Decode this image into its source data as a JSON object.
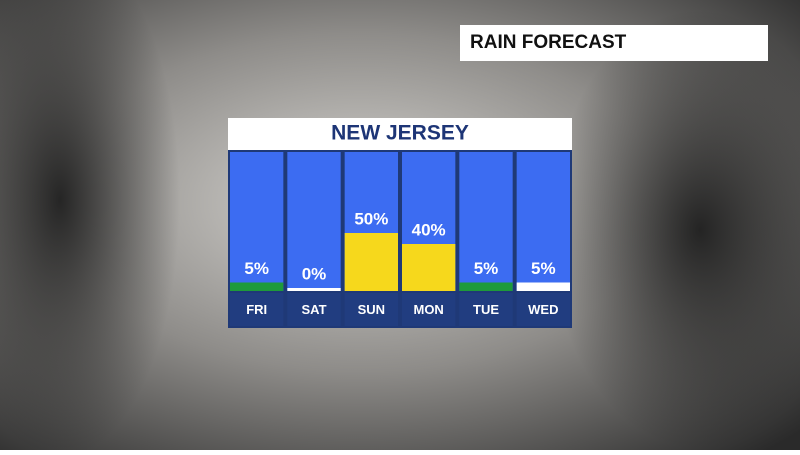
{
  "header": {
    "title": "RAIN FORECAST"
  },
  "chart_data": {
    "type": "bar",
    "title": "NEW JERSEY",
    "categories": [
      "FRI",
      "SAT",
      "SUN",
      "MON",
      "TUE",
      "WED"
    ],
    "values": [
      5,
      0,
      50,
      40,
      5,
      5
    ],
    "value_labels": [
      "5%",
      "0%",
      "50%",
      "40%",
      "5%",
      "5%"
    ],
    "colors": [
      "#1e9a3a",
      "#ffffff",
      "#f6d81c",
      "#f6d81c",
      "#1e9a3a",
      "#ffffff"
    ],
    "ylim": [
      0,
      100
    ]
  }
}
